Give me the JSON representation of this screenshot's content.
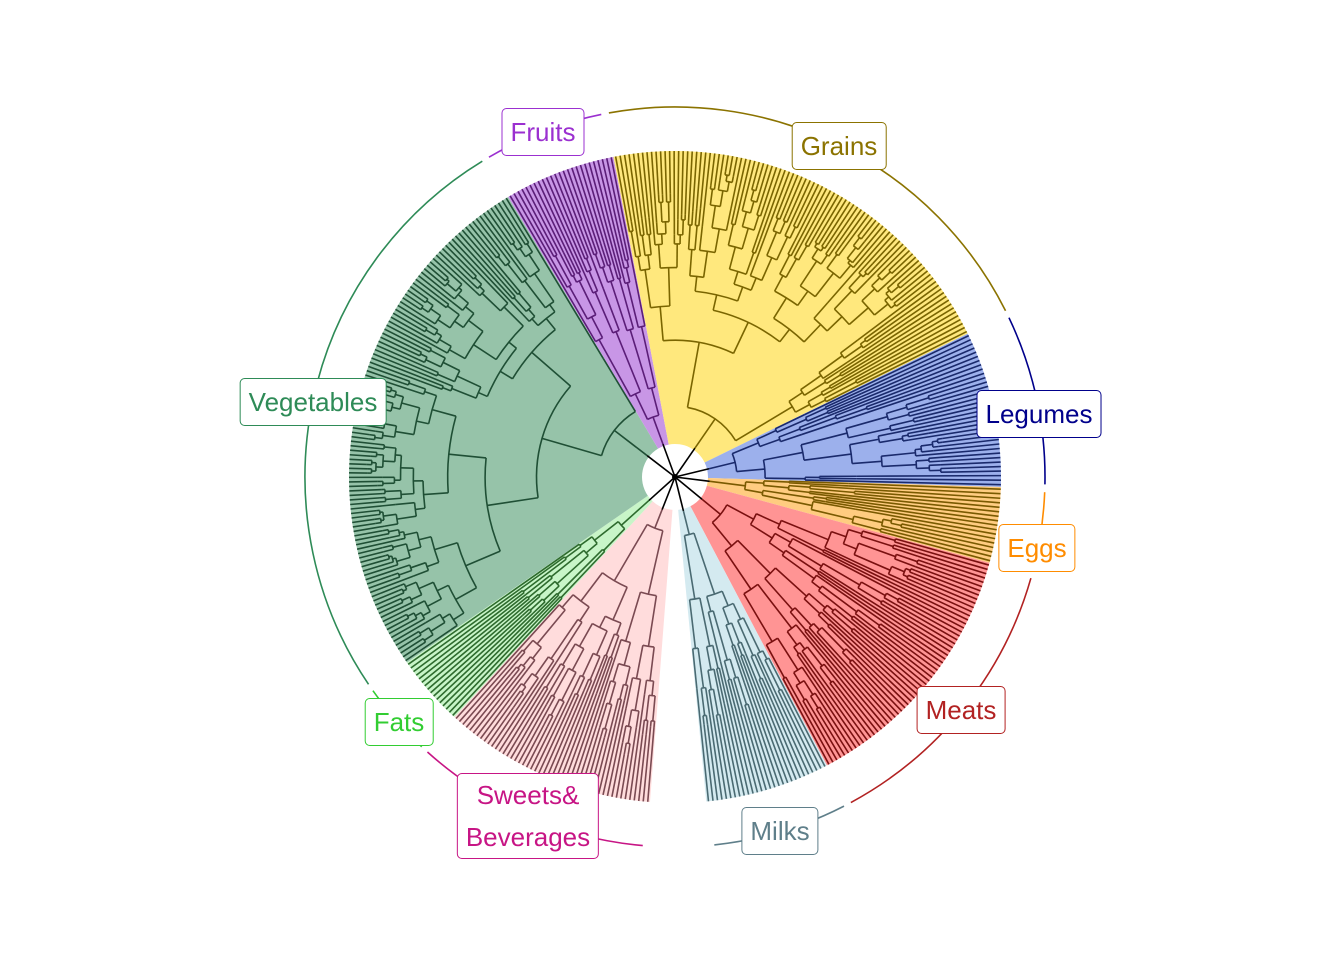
{
  "groups": [
    {
      "name": "Sweets&\nBeverages",
      "line1": "Sweets&",
      "line2": "Beverages",
      "fill": "#FFDCDC",
      "stroke": "#7A4A52",
      "label_color": "#C71585",
      "leaves": 48
    },
    {
      "name": "Fats",
      "fill": "#C8F5C8",
      "stroke": "#2E6B2E",
      "label_color": "#32CD32",
      "leaves": 16
    },
    {
      "name": "Vegetables",
      "fill": "#96C3A9",
      "stroke": "#1F4F35",
      "label_color": "#2E8B57",
      "leaves": 118
    },
    {
      "name": "Fruits",
      "fill": "#C896E6",
      "stroke": "#5B1E78",
      "label_color": "#9B30D0",
      "leaves": 25
    },
    {
      "name": "Grains",
      "fill": "#FFE87D",
      "stroke": "#7A6500",
      "label_color": "#8B7300",
      "leaves": 94
    },
    {
      "name": "Legumes",
      "fill": "#9CB0EC",
      "stroke": "#1A2A6C",
      "label_color": "#00008B",
      "leaves": 35
    },
    {
      "name": "Eggs",
      "fill": "#FFCC80",
      "stroke": "#7A5A00",
      "label_color": "#FF8C00",
      "leaves": 17
    },
    {
      "name": "Meats",
      "fill": "#FF9494",
      "stroke": "#7A1010",
      "label_color": "#B22222",
      "leaves": 59
    },
    {
      "name": "Milks",
      "fill": "#D4EAF0",
      "stroke": "#4A6A72",
      "label_color": "#5F7F8A",
      "leaves": 28
    }
  ],
  "root_color": "#000000"
}
